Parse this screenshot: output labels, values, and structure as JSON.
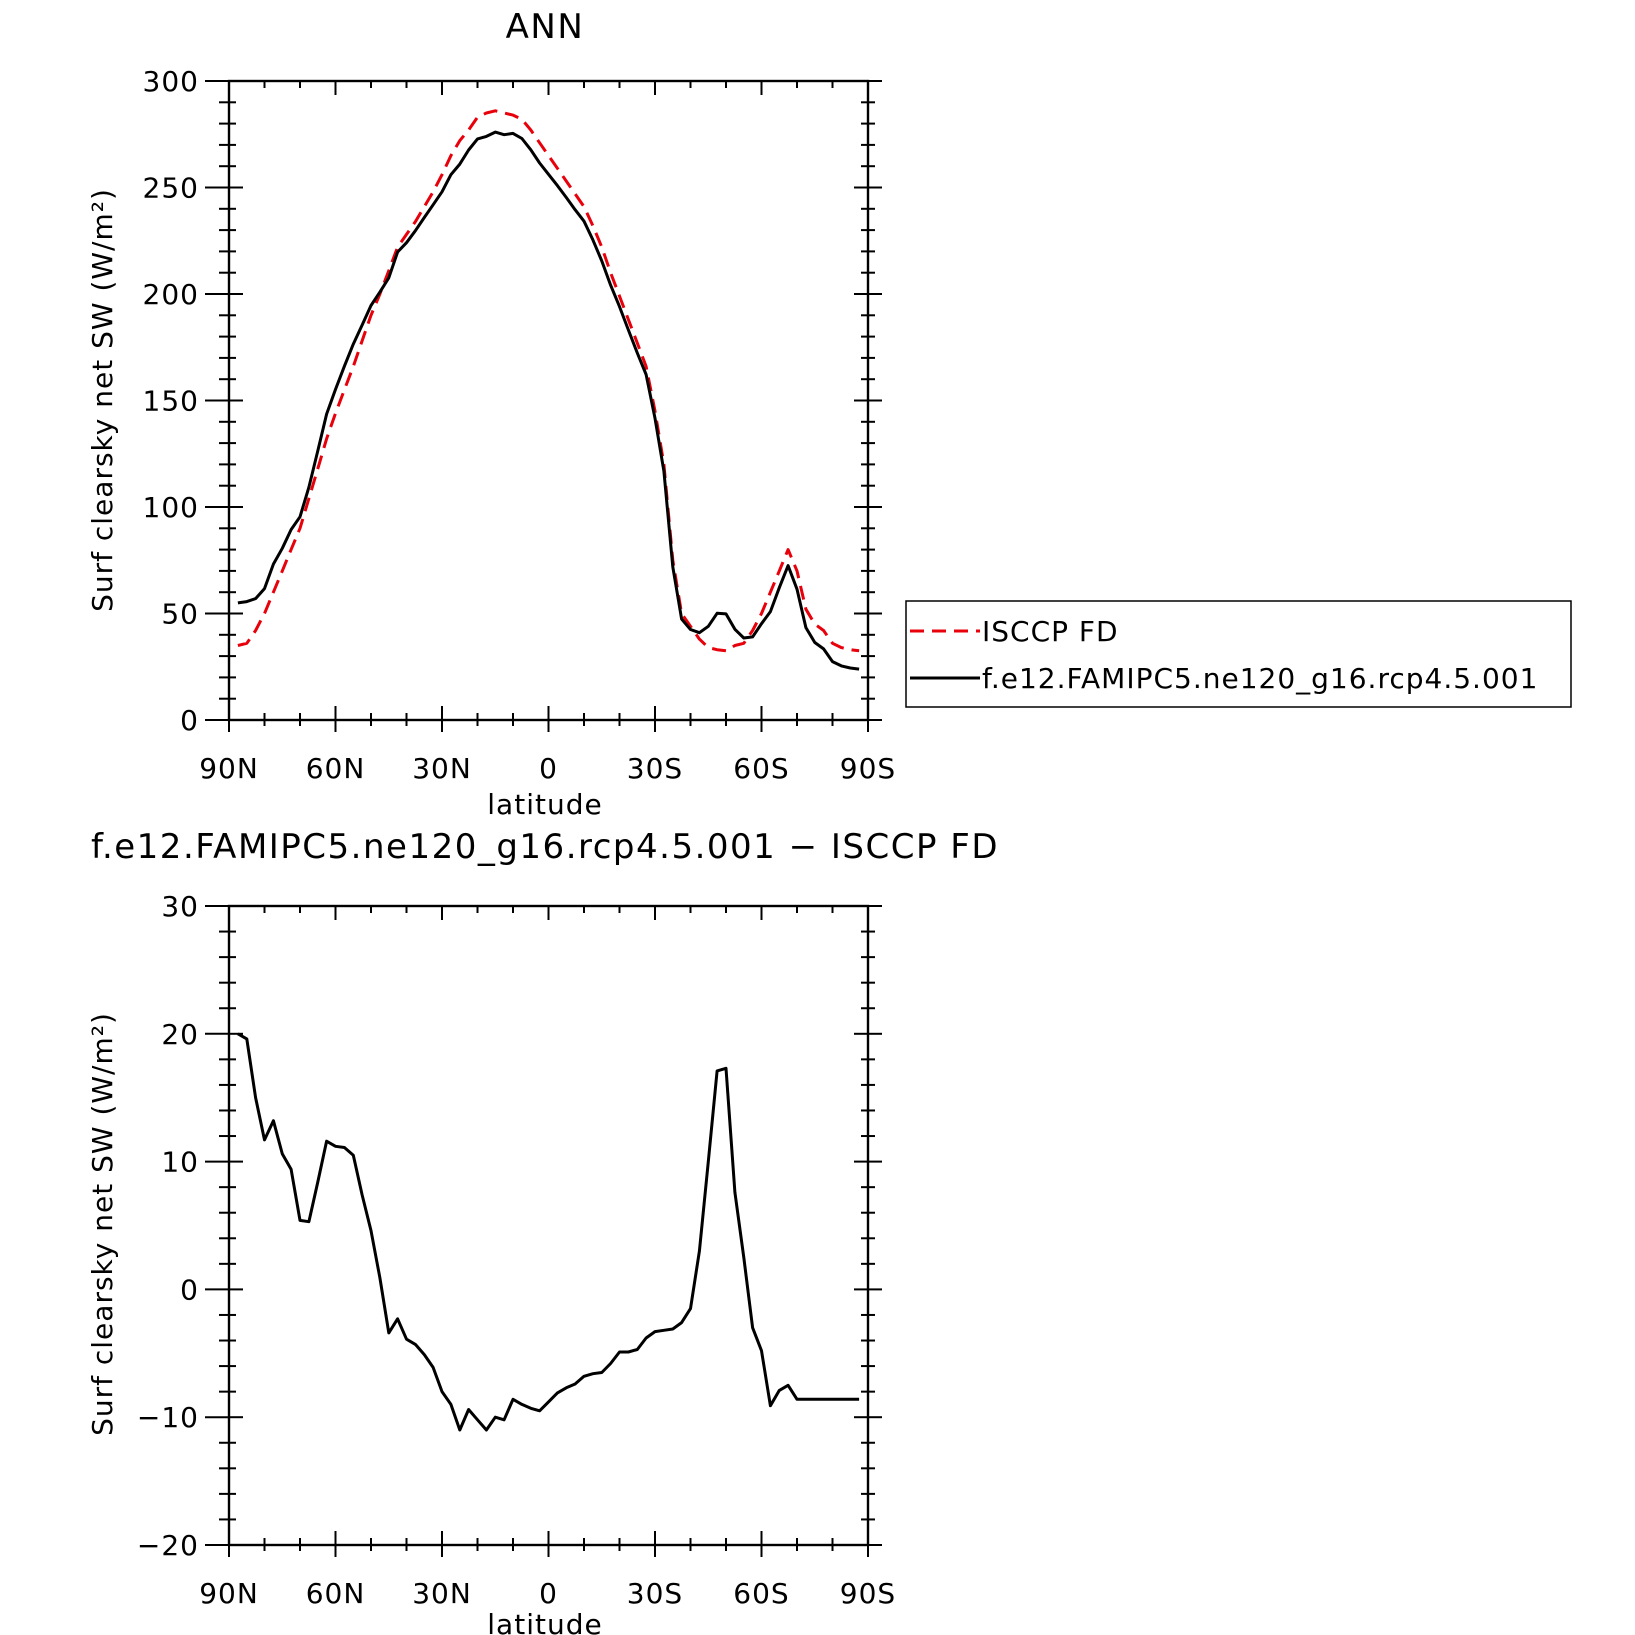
{
  "chart_data": [
    {
      "type": "line",
      "title": "ANN",
      "xlabel": "latitude",
      "ylabel": "Surf clearsky net SW (W/m²)",
      "xlim": [
        90,
        -90
      ],
      "ylim": [
        0,
        300
      ],
      "x_ticks": [
        {
          "value": 90,
          "label": "90N"
        },
        {
          "value": 60,
          "label": "60N"
        },
        {
          "value": 30,
          "label": "30N"
        },
        {
          "value": 0,
          "label": "0"
        },
        {
          "value": -30,
          "label": "30S"
        },
        {
          "value": -60,
          "label": "60S"
        },
        {
          "value": -90,
          "label": "90S"
        }
      ],
      "y_ticks": [
        0,
        50,
        100,
        150,
        200,
        250,
        300
      ],
      "y_tick_labels": [
        "0",
        "50",
        "100",
        "150",
        "200",
        "250",
        "300"
      ],
      "legend_position": "right",
      "series": [
        {
          "name": "ISCCP FD",
          "color": "#e8000b",
          "dash": "dashed",
          "x": [
            87.5,
            85,
            82.5,
            80,
            77.5,
            75,
            72.5,
            70,
            67.5,
            65,
            62.5,
            60,
            57.5,
            55,
            52.5,
            50,
            47.5,
            45,
            42.5,
            40,
            37.5,
            35,
            32.5,
            30,
            27.5,
            25,
            22.5,
            20,
            17.5,
            15,
            12.5,
            10,
            7.5,
            5,
            2.5,
            0,
            -2.5,
            -5,
            -7.5,
            -10,
            -12.5,
            -15,
            -17.5,
            -20,
            -22.5,
            -25,
            -27.5,
            -30,
            -32.5,
            -35,
            -37.5,
            -40,
            -42.5,
            -45,
            -47.5,
            -50,
            -52.5,
            -55,
            -57.5,
            -60,
            -62.5,
            -65,
            -67.5,
            -70,
            -72.5,
            -75,
            -77.5,
            -80,
            -82.5,
            -85,
            -87.5
          ],
          "y": [
            35,
            36,
            42,
            50,
            60,
            70,
            80,
            90,
            104,
            118,
            132,
            144,
            155,
            166,
            178,
            190,
            200,
            211,
            222,
            228,
            234,
            241,
            248,
            256,
            265,
            272,
            277,
            283,
            285,
            286,
            285,
            284,
            282,
            277,
            271,
            265,
            259,
            253,
            247,
            241,
            232,
            222,
            210,
            199,
            188,
            177,
            166,
            145,
            120,
            75,
            50,
            44,
            38,
            34,
            33,
            32.5,
            35,
            36,
            42,
            50,
            60,
            70,
            80,
            70,
            52,
            45,
            42,
            36,
            34,
            33,
            32.5
          ],
          "note_ignore": true
        },
        {
          "name": "f.e12.FAMIPC5.ne120_g16.rcp4.5.001",
          "color": "#000000",
          "dash": "solid",
          "x": [],
          "y": []
        }
      ]
    },
    {
      "type": "line",
      "title": "f.e12.FAMIPC5.ne120_g16.rcp4.5.001 − ISCCP FD",
      "xlabel": "latitude",
      "ylabel": "Surf clearsky net SW (W/m²)",
      "xlim": [
        90,
        -90
      ],
      "ylim": [
        -20,
        30
      ],
      "x_ticks": [
        {
          "value": 90,
          "label": "90N"
        },
        {
          "value": 60,
          "label": "60N"
        },
        {
          "value": 30,
          "label": "30N"
        },
        {
          "value": 0,
          "label": "0"
        },
        {
          "value": -30,
          "label": "30S"
        },
        {
          "value": -60,
          "label": "60S"
        },
        {
          "value": -90,
          "label": "90S"
        }
      ],
      "y_ticks": [
        -20,
        -10,
        0,
        10,
        20,
        30
      ],
      "y_tick_labels": [
        "−20",
        "−10",
        "0",
        "10",
        "20",
        "30"
      ],
      "series": [
        {
          "color": "#000000",
          "dash": "solid",
          "x": [
            87.5,
            85,
            82.5,
            80,
            77.5,
            75,
            72.5,
            70,
            67.5,
            65,
            62.5,
            60,
            57.5,
            55,
            52.5,
            50,
            47.5,
            45,
            42.5,
            40,
            37.5,
            35,
            32.5,
            30,
            27.5,
            25,
            22.5,
            20,
            17.5,
            15,
            12.5,
            10,
            7.5,
            5,
            2.5,
            0,
            -2.5,
            -5,
            -7.5,
            -10,
            -12.5,
            -15,
            -17.5,
            -20,
            -22.5,
            -25,
            -27.5,
            -30,
            -32.5,
            -35,
            -37.5,
            -40,
            -42.5,
            -45,
            -47.5,
            -50,
            -52.5,
            -55,
            -57.5,
            -60,
            -62.5,
            -65,
            -67.5,
            -70,
            -72.5,
            -75,
            -77.5,
            -80,
            -82.5,
            -85,
            -87.5
          ],
          "y": [
            20,
            19.6,
            15,
            11.7,
            13.2,
            10.6,
            9.4,
            5.4,
            5.3,
            8.4,
            11.6,
            11.2,
            11.1,
            10.5,
            7.4,
            4.6,
            0.9,
            -3.4,
            -2.3,
            -3.9,
            -4.3,
            -5.1,
            -6.1,
            -8.0,
            -9.0,
            -11.0,
            -9.4,
            -10.2,
            -11.0,
            -10.0,
            -10.2,
            -8.6,
            -9.0,
            -9.3,
            -9.5,
            -8.8,
            -8.1,
            -7.7,
            -7.4,
            -6.8,
            -6.6,
            -6.5,
            -5.8,
            -4.9,
            -4.9,
            -4.7,
            -3.8,
            -3.3,
            -3.2,
            -3.1,
            -2.6,
            -1.5,
            3.0,
            10.0,
            17.1,
            17.3,
            7.6,
            2.5,
            -3.0,
            -4.8,
            -9.1,
            -7.9,
            -7.5,
            -8.6,
            -8.6,
            -8.6,
            -8.6,
            -8.6,
            -8.6,
            -8.6,
            -8.6
          ]
        }
      ]
    }
  ]
}
